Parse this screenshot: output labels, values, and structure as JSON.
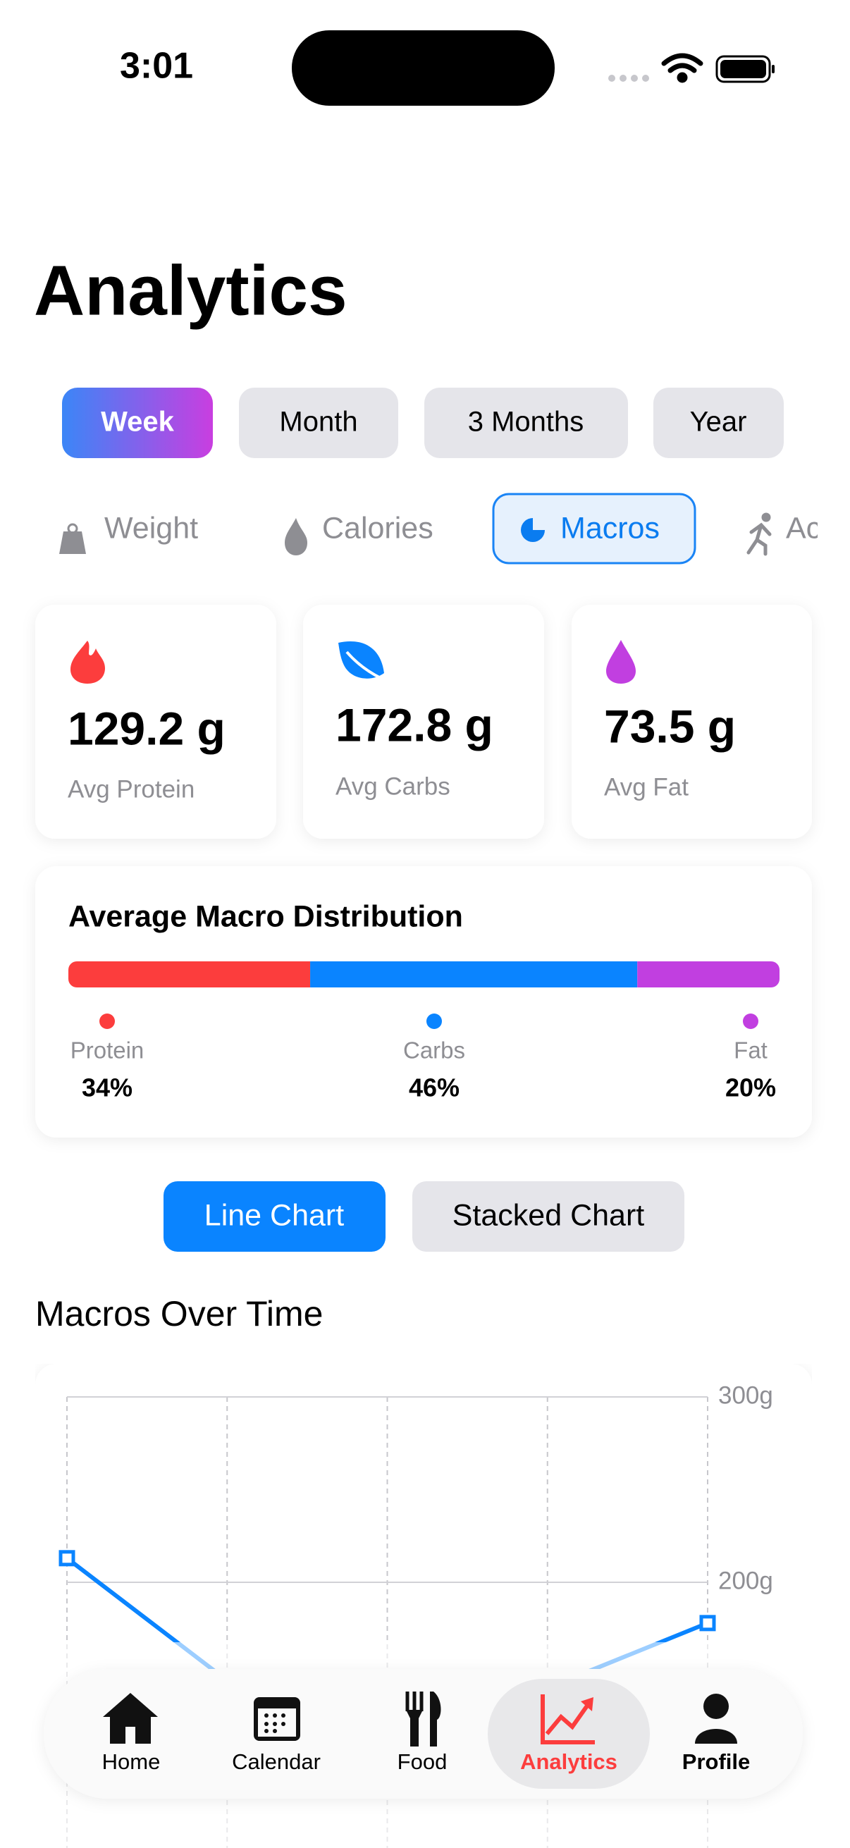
{
  "status_bar": {
    "time": "3:01"
  },
  "header": {
    "title": "Analytics"
  },
  "period_tabs": [
    "Week",
    "Month",
    "3 Months",
    "Year"
  ],
  "metric_tabs": [
    "Weight",
    "Calories",
    "Macros",
    "Activity"
  ],
  "stats": [
    {
      "value": "129.2 g",
      "label": "Avg Protein"
    },
    {
      "value": "172.8 g",
      "label": "Avg Carbs"
    },
    {
      "value": "73.5 g",
      "label": "Avg Fat"
    }
  ],
  "distribution": {
    "title": "Average Macro Distribution",
    "items": [
      {
        "name": "Protein",
        "value": 34,
        "value_label": "34%",
        "color": "#fc3d3d"
      },
      {
        "name": "Carbs",
        "value": 46,
        "value_label": "46%",
        "color": "#0a84ff"
      },
      {
        "name": "Fat",
        "value": 20,
        "value_label": "20%",
        "color": "#c13fe0"
      }
    ]
  },
  "chart_toggle": [
    "Line Chart",
    "Stacked Chart"
  ],
  "chart_data": {
    "type": "line",
    "title": "Macros Over Time",
    "categories": [
      null,
      null,
      null,
      null,
      null
    ],
    "series": [
      {
        "color": "#0a84ff",
        "values": [
          213,
          147,
          120,
          143,
          178
        ]
      }
    ],
    "ylim": [
      100,
      300
    ],
    "yticks": [
      {
        "value": 200,
        "label": "200g"
      },
      {
        "value": 300,
        "label": "300g"
      }
    ],
    "grid": true
  },
  "tab_bar": [
    "Home",
    "Calendar",
    "Food",
    "Analytics",
    "Profile"
  ]
}
